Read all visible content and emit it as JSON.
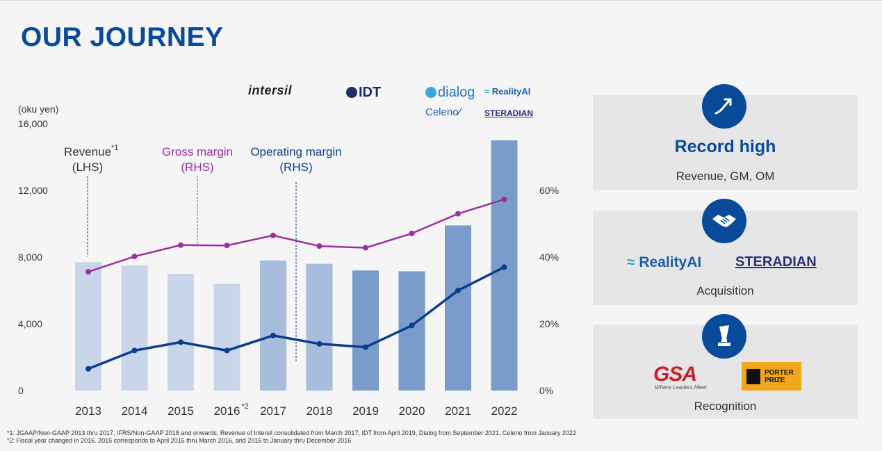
{
  "title": "OUR JOURNEY",
  "logos": {
    "intersil": "intersil",
    "idt": "IDT",
    "dialog": "dialog",
    "realityai": "RealityAI",
    "celeno": "Celeno",
    "steradian": "STERADIAN"
  },
  "cards": {
    "record": {
      "title": "Record high",
      "text": "Revenue, GM, OM",
      "icon": "trend-up-arrow-icon"
    },
    "acquisition": {
      "realityai": "RealityAI",
      "steradian": "STERADIAN",
      "text": "Acquisition",
      "icon": "handshake-icon"
    },
    "recognition": {
      "gsa": "GSA",
      "gsa_tagline": "Where Leaders Meet",
      "porter_line1": "PORTER",
      "porter_line2": "PRIZE",
      "text": "Recognition",
      "icon": "trophy-icon"
    }
  },
  "footnotes": {
    "note1": "*1: JGAAP/Non-GAAP 2013 thru 2017, IFRS/Non-GAAP 2018 and onwards. Revenue of Intersil consolidated from March 2017, IDT from April 2019, Dialog from September 2021, Celeno from January 2022",
    "note2": "*2: Fiscal year changed in 2016. 2015 corresponds to April 2015 thru March 2016, and 2016 to January thru December 2016"
  },
  "colors": {
    "title": "#0a4a9a",
    "gross_margin": "#9b2f9e",
    "operating_margin": "#0a3d8f",
    "bar_light": "#c9d6e9",
    "bar_mid": "#a8bcdc",
    "bar_dark": "#7a9ccb"
  },
  "chart_data": {
    "type": "bar",
    "left_axis_unit": "(oku yen)",
    "categories": [
      "2013",
      "2014",
      "2015",
      "2016",
      "2017",
      "2018",
      "2019",
      "2020",
      "2021",
      "2022"
    ],
    "category_superscripts": [
      "",
      "",
      "",
      "*2",
      "",
      "",
      "",
      "",
      "",
      ""
    ],
    "y_left_ticks": [
      "0",
      "4,000",
      "8,000",
      "12,000",
      "16,000"
    ],
    "y_left_lim": [
      0,
      16000
    ],
    "y_right_ticks": [
      "0%",
      "20%",
      "40%",
      "60%"
    ],
    "y_right_lim": [
      0,
      80
    ],
    "bar_shades": [
      "light",
      "light",
      "light",
      "light",
      "mid",
      "mid",
      "dark",
      "dark",
      "dark",
      "dark"
    ],
    "series": [
      {
        "name": "Revenue",
        "axis": "left",
        "type": "bar",
        "values": [
          7700,
          7500,
          7000,
          6400,
          7800,
          7600,
          7200,
          7150,
          9900,
          15000
        ]
      },
      {
        "name": "Gross margin",
        "axis": "right",
        "type": "line",
        "values": [
          35.6,
          40.2,
          43.6,
          43.5,
          46.5,
          43.3,
          42.8,
          47.1,
          53,
          57.3
        ]
      },
      {
        "name": "Operating margin",
        "axis": "right",
        "type": "line",
        "values": [
          6.5,
          12,
          14.5,
          12,
          16.5,
          14,
          13,
          19.5,
          30,
          37
        ]
      }
    ],
    "annotations": [
      {
        "series": "Revenue",
        "line1": "Revenue",
        "sup": "*1",
        "line2": "(LHS)"
      },
      {
        "series": "Gross margin",
        "line1": "Gross margin",
        "sup": "",
        "line2": "(RHS)"
      },
      {
        "series": "Operating margin",
        "line1": "Operating margin",
        "sup": "",
        "line2": "(RHS)"
      }
    ]
  }
}
